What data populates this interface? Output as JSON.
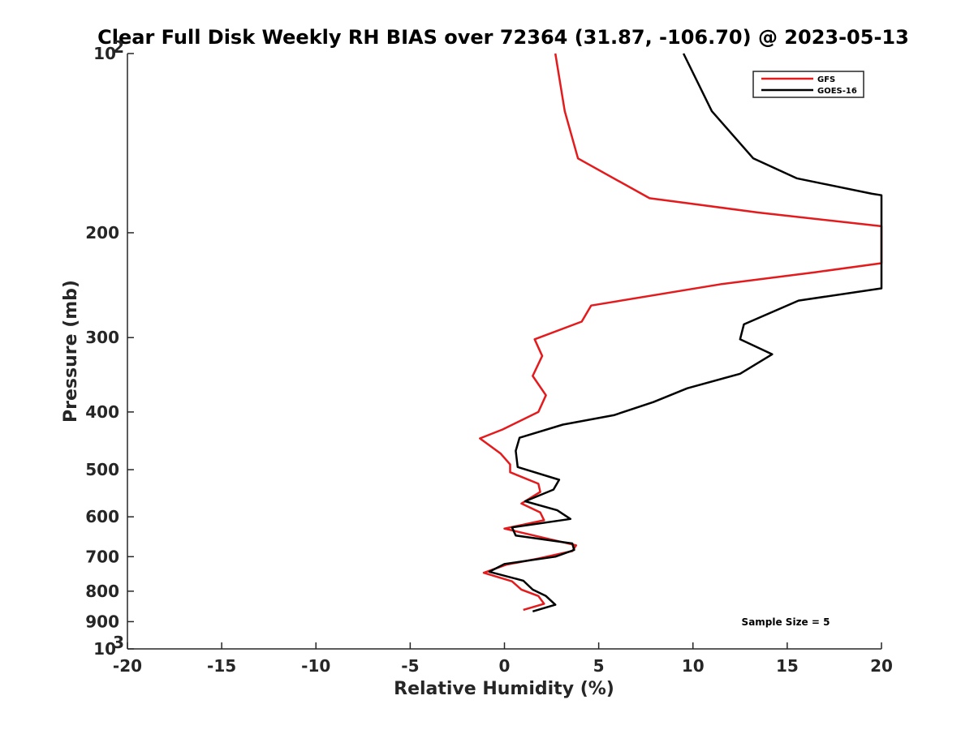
{
  "chart_data": {
    "type": "line",
    "title": "Clear Full Disk Weekly RH BIAS over 72364 (31.87, -106.70) @ 2023-05-13",
    "xlabel": "Relative Humidity (%)",
    "ylabel": "Pressure (mb)",
    "xlim": [
      -20,
      20
    ],
    "ylim": [
      100,
      1000
    ],
    "yscale": "log",
    "y_reversed": true,
    "x_ticks": [
      "-20",
      "-15",
      "-10",
      "-5",
      "0",
      "5",
      "10",
      "15",
      "20"
    ],
    "y_ticks": [
      {
        "value": 100,
        "label": "10",
        "sup": "2"
      },
      {
        "value": 200,
        "label": "200"
      },
      {
        "value": 300,
        "label": "300"
      },
      {
        "value": 400,
        "label": "400"
      },
      {
        "value": 500,
        "label": "500"
      },
      {
        "value": 600,
        "label": "600"
      },
      {
        "value": 700,
        "label": "700"
      },
      {
        "value": 800,
        "label": "800"
      },
      {
        "value": 900,
        "label": "900"
      },
      {
        "value": 1000,
        "label": "10",
        "sup": "3"
      }
    ],
    "legend_position": "top-right",
    "annotation": "Sample Size = 5",
    "series": [
      {
        "name": "GFS",
        "color": "#e41a1c",
        "points": [
          [
            2.7,
            100
          ],
          [
            3.2,
            125
          ],
          [
            3.9,
            150
          ],
          [
            7.7,
            175
          ],
          [
            13.5,
            185
          ],
          [
            20,
            195
          ],
          [
            20,
            225
          ],
          [
            16.5,
            233
          ],
          [
            11.5,
            244
          ],
          [
            4.6,
            265
          ],
          [
            4.1,
            282
          ],
          [
            1.6,
            302
          ],
          [
            2.0,
            322
          ],
          [
            1.5,
            348
          ],
          [
            2.2,
            375
          ],
          [
            1.8,
            400
          ],
          [
            -0.1,
            428
          ],
          [
            -1.3,
            443
          ],
          [
            -0.2,
            470
          ],
          [
            0.3,
            490
          ],
          [
            0.3,
            505
          ],
          [
            1.8,
            528
          ],
          [
            1.9,
            545
          ],
          [
            0.9,
            570
          ],
          [
            1.9,
            590
          ],
          [
            2.1,
            608
          ],
          [
            0.0,
            628
          ],
          [
            3.8,
            670
          ],
          [
            3.6,
            685
          ],
          [
            1.8,
            705
          ],
          [
            0.1,
            722
          ],
          [
            -1.1,
            745
          ],
          [
            0.4,
            770
          ],
          [
            0.9,
            795
          ],
          [
            1.8,
            815
          ],
          [
            2.1,
            840
          ],
          [
            1.0,
            860
          ]
        ]
      },
      {
        "name": "GOES-16",
        "color": "#000000",
        "points": [
          [
            9.5,
            100
          ],
          [
            11.0,
            125
          ],
          [
            13.2,
            150
          ],
          [
            15.5,
            162
          ],
          [
            19.5,
            172
          ],
          [
            20,
            173
          ],
          [
            20,
            248
          ],
          [
            15.6,
            260
          ],
          [
            12.7,
            285
          ],
          [
            12.5,
            302
          ],
          [
            14.2,
            320
          ],
          [
            12.5,
            345
          ],
          [
            9.7,
            365
          ],
          [
            7.9,
            385
          ],
          [
            5.8,
            405
          ],
          [
            3.1,
            420
          ],
          [
            0.8,
            442
          ],
          [
            0.6,
            465
          ],
          [
            0.7,
            495
          ],
          [
            2.9,
            520
          ],
          [
            2.6,
            540
          ],
          [
            1.1,
            565
          ],
          [
            2.8,
            585
          ],
          [
            3.5,
            605
          ],
          [
            0.4,
            625
          ],
          [
            0.6,
            645
          ],
          [
            3.6,
            665
          ],
          [
            3.7,
            682
          ],
          [
            2.7,
            700
          ],
          [
            0.0,
            720
          ],
          [
            -0.8,
            742
          ],
          [
            1.0,
            768
          ],
          [
            1.5,
            795
          ],
          [
            2.2,
            815
          ],
          [
            2.7,
            843
          ],
          [
            1.5,
            865
          ]
        ]
      }
    ]
  }
}
